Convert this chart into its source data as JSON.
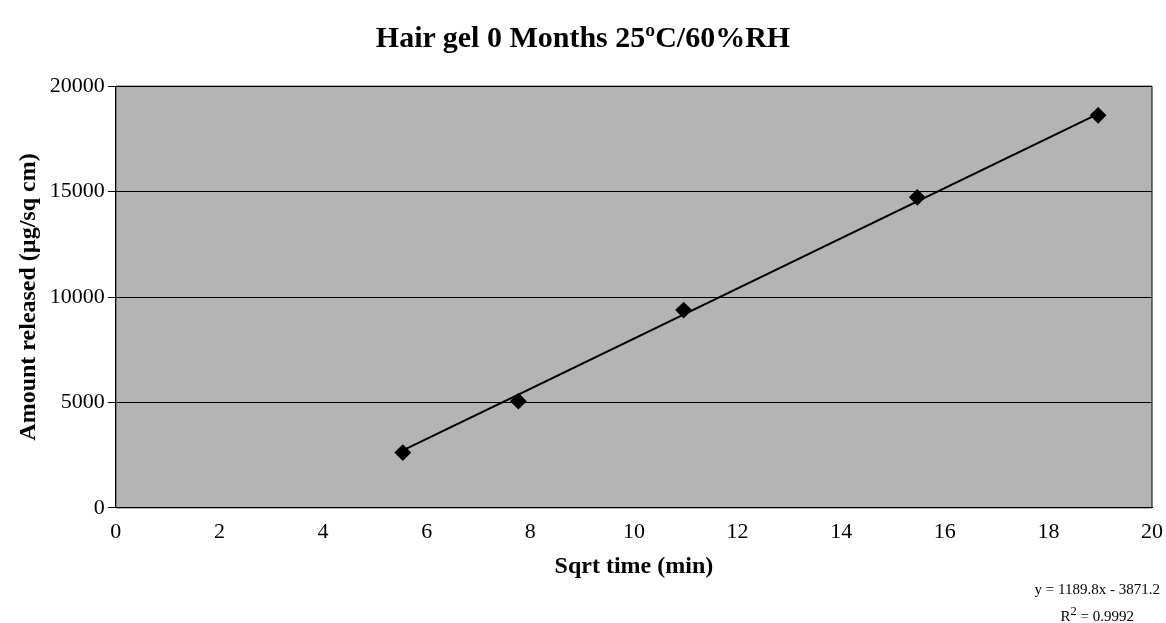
{
  "chart_data": {
    "type": "scatter",
    "title": "Hair gel 0 Months 25ºC/60%RH",
    "xlabel": "Sqrt time (min)",
    "ylabel": "Amount released (µg/sq cm)",
    "series": [
      {
        "type": "scatter",
        "color": "#000000",
        "x": [
          5.54,
          7.77,
          10.96,
          15.47,
          18.96
        ],
        "values": [
          2620,
          5060,
          9380,
          14730,
          18620
        ],
        "marker": "diamond"
      },
      {
        "type": "line",
        "color": "#000000",
        "x": [
          5.54,
          18.96
        ],
        "values": [
          2720,
          18690
        ],
        "marker": "none"
      }
    ],
    "xlim": [
      0,
      20
    ],
    "xticks": [
      0,
      2,
      4,
      6,
      8,
      10,
      12,
      14,
      16,
      18,
      20
    ],
    "ylim": [
      0,
      20000
    ],
    "yticks": [
      0,
      5000,
      10000,
      15000,
      20000
    ],
    "grid": "y",
    "legend": false,
    "annotations": [
      "y = 1189.8x - 3871.2",
      "R$^{2}$ = 0.9992"
    ]
  }
}
